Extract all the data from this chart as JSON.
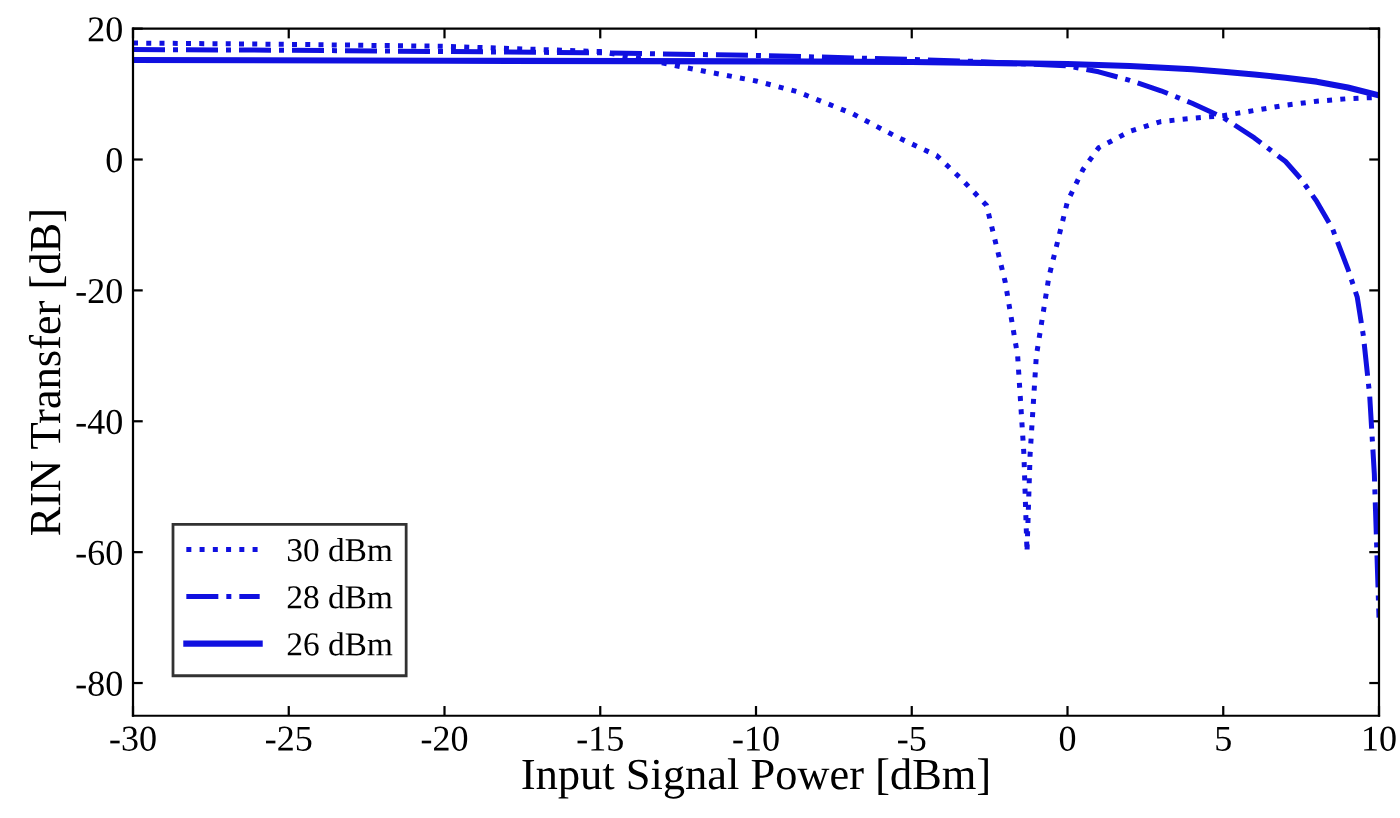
{
  "chart_data": {
    "type": "line",
    "xlabel": "Input Signal Power [dBm]",
    "ylabel": "RIN Transfer [dB]",
    "xlim": [
      -30,
      10
    ],
    "xticks": [
      -30,
      -25,
      -20,
      -15,
      -10,
      -5,
      0,
      5,
      10
    ],
    "ylim": [
      -85,
      20
    ],
    "yticks": [
      -80,
      -60,
      -40,
      -20,
      0,
      20
    ],
    "grid": false,
    "legend": "bottom left",
    "marker": "none",
    "series": [
      {
        "name": "30 dBm",
        "color": "#1010e0",
        "line_style": "dotted",
        "x": [
          -30,
          -25,
          -20,
          -15,
          -13.7,
          -12,
          -10,
          -8.7,
          -6.9,
          -5.5,
          -4.2,
          -3.4,
          -2.6,
          -2.0,
          -1.6,
          -1.4,
          -1.3,
          -1.2,
          -1.0,
          -0.6,
          0,
          0.5,
          1,
          2,
          3,
          4,
          5,
          6,
          7,
          8,
          9,
          10
        ],
        "values": [
          17.8,
          17.6,
          17.3,
          16.5,
          15.4,
          13.8,
          12.0,
          10.4,
          7.0,
          3.5,
          0.6,
          -3,
          -7,
          -18.7,
          -30,
          -45,
          -60,
          -45,
          -30,
          -18,
          -6.4,
          -1.5,
          1.8,
          4.3,
          5.8,
          6.3,
          6.7,
          7.5,
          8.3,
          8.9,
          9.3,
          9.5
        ]
      },
      {
        "name": "28 dBm",
        "color": "#1010e0",
        "line_style": "dashdot",
        "x": [
          -30,
          -25,
          -20,
          -15,
          -10,
          -5,
          -3,
          0,
          1,
          2,
          3,
          4,
          5,
          6,
          7,
          7.5,
          8,
          8.5,
          9,
          9.3,
          9.5,
          9.7,
          9.85,
          10
        ],
        "values": [
          16.8,
          16.7,
          16.5,
          16.3,
          15.9,
          15.3,
          15.0,
          14.3,
          13.4,
          12.1,
          10.5,
          8.6,
          6.4,
          3.3,
          -0.3,
          -3,
          -6.4,
          -10.5,
          -16.7,
          -21,
          -27,
          -36,
          -48,
          -70
        ]
      },
      {
        "name": "26 dBm",
        "color": "#1010e0",
        "line_style": "solid",
        "x": [
          -30,
          -20,
          -10,
          -5,
          0,
          2,
          4,
          5,
          6,
          7,
          8,
          9,
          10
        ],
        "values": [
          15.2,
          15.1,
          15.0,
          14.9,
          14.6,
          14.3,
          13.8,
          13.4,
          13.0,
          12.5,
          11.9,
          11.0,
          9.8
        ]
      }
    ]
  }
}
